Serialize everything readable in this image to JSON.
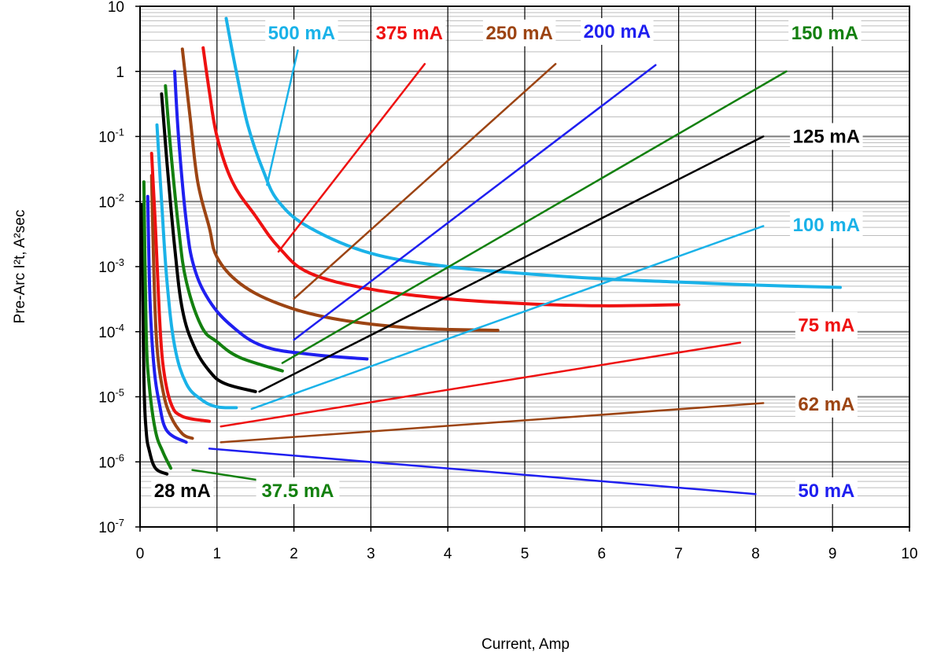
{
  "chart_data": {
    "type": "line",
    "xlabel": "Current, Amp",
    "ylabel": "Pre-Arc I²t, A²sec",
    "xlim": [
      0,
      10
    ],
    "ylim": [
      1e-07,
      10
    ],
    "y_scale": "log",
    "grid": true,
    "x_ticks": [
      "0",
      "1",
      "2",
      "3",
      "4",
      "5",
      "6",
      "7",
      "8",
      "9",
      "10"
    ],
    "y_ticks": [
      {
        "base": "10",
        "exp": "-7"
      },
      {
        "base": "10",
        "exp": "-6"
      },
      {
        "base": "10",
        "exp": "-5"
      },
      {
        "base": "10",
        "exp": "-4"
      },
      {
        "base": "10",
        "exp": "-3"
      },
      {
        "base": "10",
        "exp": "-2"
      },
      {
        "base": "10",
        "exp": "-1"
      },
      {
        "base": "1",
        "exp": ""
      },
      {
        "base": "10",
        "exp": ""
      }
    ],
    "colors": {
      "black": "#000000",
      "green": "#13800f",
      "lightblue": "#1ab2e8",
      "blue": "#1f1ff0",
      "brown": "#9c4413",
      "red": "#ee1111"
    },
    "pre_arc_curves": [
      {
        "name": "28 mA",
        "color": "black",
        "points": [
          [
            0.02,
            0.009
          ],
          [
            0.05,
            2e-05
          ],
          [
            0.08,
            3e-06
          ],
          [
            0.12,
            1.5e-06
          ],
          [
            0.2,
            8e-07
          ],
          [
            0.35,
            6.5e-07
          ]
        ]
      },
      {
        "name": "37.5 mA",
        "color": "green",
        "points": [
          [
            0.05,
            0.02
          ],
          [
            0.08,
            0.0001
          ],
          [
            0.12,
            1.5e-05
          ],
          [
            0.2,
            3e-06
          ],
          [
            0.3,
            1.4e-06
          ],
          [
            0.4,
            8e-07
          ]
        ]
      },
      {
        "name": "50 mA",
        "color": "blue",
        "points": [
          [
            0.1,
            0.012
          ],
          [
            0.13,
            0.0003
          ],
          [
            0.18,
            3e-05
          ],
          [
            0.25,
            8e-06
          ],
          [
            0.35,
            3e-06
          ],
          [
            0.6,
            2e-06
          ]
        ]
      },
      {
        "name": "62 mA",
        "color": "brown",
        "points": [
          [
            0.15,
            0.025
          ],
          [
            0.18,
            0.0008
          ],
          [
            0.22,
            6e-05
          ],
          [
            0.3,
            1.2e-05
          ],
          [
            0.4,
            5e-06
          ],
          [
            0.55,
            2.7e-06
          ],
          [
            0.68,
            2.3e-06
          ]
        ]
      },
      {
        "name": "75 mA",
        "color": "red",
        "points": [
          [
            0.15,
            0.055
          ],
          [
            0.2,
            0.004
          ],
          [
            0.25,
            0.0002
          ],
          [
            0.3,
            3e-05
          ],
          [
            0.4,
            8e-06
          ],
          [
            0.55,
            5e-06
          ],
          [
            0.9,
            4.2e-06
          ]
        ]
      },
      {
        "name": "100 mA",
        "color": "lightblue",
        "points": [
          [
            0.22,
            0.15
          ],
          [
            0.28,
            0.01
          ],
          [
            0.35,
            0.0006
          ],
          [
            0.45,
            6e-05
          ],
          [
            0.6,
            1.6e-05
          ],
          [
            0.8,
            9e-06
          ],
          [
            1.0,
            7e-06
          ],
          [
            1.25,
            6.8e-06
          ]
        ]
      },
      {
        "name": "125 mA",
        "color": "black",
        "points": [
          [
            0.28,
            0.45
          ],
          [
            0.35,
            0.04
          ],
          [
            0.45,
            0.002
          ],
          [
            0.55,
            0.00022
          ],
          [
            0.7,
            6e-05
          ],
          [
            0.9,
            2.5e-05
          ],
          [
            1.1,
            1.6e-05
          ],
          [
            1.5,
            1.2e-05
          ]
        ]
      },
      {
        "name": "150 mA",
        "color": "green",
        "points": [
          [
            0.33,
            0.6
          ],
          [
            0.4,
            0.06
          ],
          [
            0.5,
            0.004
          ],
          [
            0.6,
            0.0006
          ],
          [
            0.8,
            0.00012
          ],
          [
            1.0,
            7e-05
          ],
          [
            1.3,
            4e-05
          ],
          [
            1.85,
            2.5e-05
          ]
        ]
      },
      {
        "name": "200 mA",
        "color": "blue",
        "points": [
          [
            0.45,
            1.0
          ],
          [
            0.5,
            0.1
          ],
          [
            0.6,
            0.005
          ],
          [
            0.7,
            0.001
          ],
          [
            0.9,
            0.0003
          ],
          [
            1.2,
            0.00012
          ],
          [
            1.6,
            6e-05
          ],
          [
            2.2,
            4.5e-05
          ],
          [
            2.95,
            3.8e-05
          ]
        ]
      },
      {
        "name": "250 mA",
        "color": "brown",
        "points": [
          [
            0.55,
            2.2
          ],
          [
            0.65,
            0.2
          ],
          [
            0.75,
            0.02
          ],
          [
            0.9,
            0.004
          ],
          [
            1.0,
            0.0014
          ],
          [
            1.3,
            0.00055
          ],
          [
            1.8,
            0.00027
          ],
          [
            2.5,
            0.00016
          ],
          [
            3.5,
            0.000115
          ],
          [
            4.65,
            0.000105
          ]
        ]
      },
      {
        "name": "375 mA",
        "color": "red",
        "points": [
          [
            0.82,
            2.3
          ],
          [
            0.9,
            0.5
          ],
          [
            1.0,
            0.1
          ],
          [
            1.2,
            0.02
          ],
          [
            1.5,
            0.006
          ],
          [
            1.8,
            0.002
          ],
          [
            2.2,
            0.0008
          ],
          [
            3.0,
            0.00045
          ],
          [
            4.0,
            0.00032
          ],
          [
            5.0,
            0.00027
          ],
          [
            6.0,
            0.00025
          ],
          [
            7.0,
            0.00026
          ]
        ]
      },
      {
        "name": "500 mA",
        "color": "lightblue",
        "points": [
          [
            1.12,
            6.5
          ],
          [
            1.25,
            1.0
          ],
          [
            1.4,
            0.15
          ],
          [
            1.6,
            0.03
          ],
          [
            1.8,
            0.01
          ],
          [
            2.2,
            0.004
          ],
          [
            3.0,
            0.0016
          ],
          [
            4.0,
            0.001
          ],
          [
            5.0,
            0.00078
          ],
          [
            6.0,
            0.00065
          ],
          [
            7.0,
            0.00058
          ],
          [
            8.0,
            0.00052
          ],
          [
            9.1,
            0.00048
          ]
        ]
      }
    ],
    "rating_lines": [
      {
        "color": "red",
        "points": [
          [
            1.8,
            0.0017
          ],
          [
            3.7,
            1.3
          ]
        ]
      },
      {
        "color": "brown",
        "points": [
          [
            2.0,
            0.00032
          ],
          [
            5.4,
            1.3
          ]
        ]
      },
      {
        "color": "blue",
        "points": [
          [
            2.0,
            7.5e-05
          ],
          [
            6.7,
            1.25
          ]
        ]
      },
      {
        "color": "green",
        "points": [
          [
            1.85,
            3.3e-05
          ],
          [
            8.4,
            1.0
          ]
        ]
      },
      {
        "color": "black",
        "points": [
          [
            1.55,
            1.2e-05
          ],
          [
            8.1,
            0.1
          ]
        ]
      },
      {
        "color": "lightblue",
        "points": [
          [
            1.45,
            6.5e-06
          ],
          [
            8.1,
            0.0042
          ]
        ]
      },
      {
        "color": "red",
        "points": [
          [
            1.05,
            3.5e-06
          ],
          [
            7.8,
            6.8e-05
          ]
        ]
      },
      {
        "color": "brown",
        "points": [
          [
            1.05,
            2e-06
          ],
          [
            8.1,
            8e-06
          ]
        ]
      },
      {
        "color": "blue",
        "points": [
          [
            0.9,
            1.6e-06
          ],
          [
            8.0,
            3.2e-07
          ]
        ]
      },
      {
        "color": "green",
        "points": [
          [
            0.68,
            7.5e-07
          ],
          [
            1.75,
            4.8e-07
          ]
        ]
      }
    ],
    "annotations": [
      {
        "text": "500 mA",
        "color": "lightblue",
        "x": 2.1,
        "y": 3.9
      },
      {
        "text": "375 mA",
        "color": "red",
        "x": 3.5,
        "y": 3.9
      },
      {
        "text": "250 mA",
        "color": "brown",
        "x": 4.93,
        "y": 3.9
      },
      {
        "text": "200 mA",
        "color": "blue",
        "x": 6.2,
        "y": 4.1
      },
      {
        "text": "150 mA",
        "color": "green",
        "x": 8.9,
        "y": 3.9
      },
      {
        "text": "125 mA",
        "color": "black",
        "x": 8.92,
        "y": 0.1
      },
      {
        "text": "100 mA",
        "color": "lightblue",
        "x": 8.92,
        "y": 0.0044
      },
      {
        "text": "75 mA",
        "color": "red",
        "x": 8.92,
        "y": 0.000125
      },
      {
        "text": "62 mA",
        "color": "brown",
        "x": 8.92,
        "y": 7.7e-06
      },
      {
        "text": "50 mA",
        "color": "blue",
        "x": 8.92,
        "y": 3.6e-07
      },
      {
        "text": "28 mA",
        "color": "black",
        "x": 0.55,
        "y": 3.6e-07
      },
      {
        "text": "37.5 mA",
        "color": "green",
        "x": 2.05,
        "y": 3.6e-07
      }
    ],
    "pointer_lines": [
      {
        "color": "lightblue",
        "points": [
          [
            1.65,
            0.018
          ],
          [
            2.05,
            2.1
          ]
        ]
      }
    ]
  }
}
